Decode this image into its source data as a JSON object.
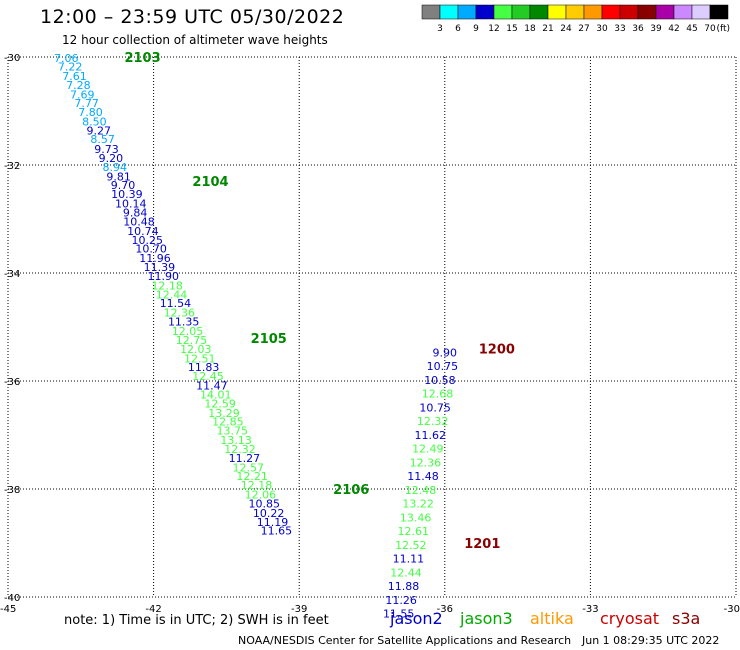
{
  "title": "12:00 – 23:59 UTC 05/30/2022",
  "subtitle": "12 hour collection of altimeter wave heights",
  "note": "note:  1) Time is in UTC;  2) SWH is in feet",
  "credit": "NOAA/NESDIS Center for Satellite Applications and Research",
  "timestamp": "Jun  1 08:29:35 UTC 2022",
  "satellites": [
    {
      "name": "jason2",
      "color": "#0000cc"
    },
    {
      "name": "jason3",
      "color": "#00aa00"
    },
    {
      "name": "altika",
      "color": "#ff9900"
    },
    {
      "name": "cryosat",
      "color": "#cc0000"
    },
    {
      "name": "s3a",
      "color": "#880000"
    }
  ],
  "colorbar": {
    "labels": [
      "3",
      "6",
      "9",
      "12",
      "15",
      "18",
      "21",
      "24",
      "27",
      "30",
      "33",
      "36",
      "39",
      "42",
      "45",
      "70"
    ],
    "unit": "(ft)",
    "colors": [
      "#808080",
      "#00ffff",
      "#00aaff",
      "#0000cc",
      "#44ff44",
      "#22cc22",
      "#008800",
      "#ffff00",
      "#ffcc00",
      "#ff9900",
      "#ff0000",
      "#cc0000",
      "#880000",
      "#aa00aa",
      "#cc88ff",
      "#ddccff",
      "#000000"
    ]
  },
  "chart_data": {
    "type": "scatter",
    "xlim": [
      -45,
      -30
    ],
    "ylim": [
      -40,
      -30
    ],
    "x_ticks": [
      -45,
      -42,
      -39,
      -36,
      -33,
      -30
    ],
    "y_ticks": [
      -30,
      -32,
      -34,
      -36,
      -38,
      -40
    ],
    "tick_labels_x": [
      "-45",
      "-42",
      "-39",
      "-36",
      "-33",
      "-30"
    ],
    "tick_labels_y": [
      "-30",
      "-32",
      "-34",
      "-36",
      "-38",
      "-40"
    ],
    "grid": true,
    "time_labels": [
      {
        "text": "2103",
        "lon": -42.6,
        "lat": -30.0,
        "color": "#008800"
      },
      {
        "text": "2104",
        "lon": -41.2,
        "lat": -32.3,
        "color": "#008800"
      },
      {
        "text": "2105",
        "lon": -40.0,
        "lat": -35.2,
        "color": "#008800"
      },
      {
        "text": "2106",
        "lon": -38.3,
        "lat": -38.0,
        "color": "#008800"
      },
      {
        "text": "1200",
        "lon": -35.3,
        "lat": -35.4,
        "color": "#880000"
      },
      {
        "text": "1201",
        "lon": -35.6,
        "lat": -39.0,
        "color": "#880000"
      }
    ],
    "points": [
      {
        "lon": -43.8,
        "lat": -30.02,
        "v": "7.06",
        "color": "#00aaff"
      },
      {
        "lon": -43.72,
        "lat": -30.18,
        "v": "7.22",
        "color": "#00aaff"
      },
      {
        "lon": -43.63,
        "lat": -30.35,
        "v": "7.61",
        "color": "#00aaff"
      },
      {
        "lon": -43.55,
        "lat": -30.52,
        "v": "7.28",
        "color": "#00aaff"
      },
      {
        "lon": -43.47,
        "lat": -30.69,
        "v": "7.69",
        "color": "#00aaff"
      },
      {
        "lon": -43.38,
        "lat": -30.85,
        "v": "7.77",
        "color": "#00aaff"
      },
      {
        "lon": -43.3,
        "lat": -31.02,
        "v": "7.80",
        "color": "#00aaff"
      },
      {
        "lon": -43.22,
        "lat": -31.19,
        "v": "8.50",
        "color": "#00aaff"
      },
      {
        "lon": -43.13,
        "lat": -31.36,
        "v": "9.27",
        "color": "#0000cc"
      },
      {
        "lon": -43.05,
        "lat": -31.52,
        "v": "8.57",
        "color": "#00aaff"
      },
      {
        "lon": -42.97,
        "lat": -31.7,
        "v": "9.73",
        "color": "#0000cc"
      },
      {
        "lon": -42.88,
        "lat": -31.87,
        "v": "9.20",
        "color": "#0000cc"
      },
      {
        "lon": -42.8,
        "lat": -32.04,
        "v": "8.94",
        "color": "#00aaff"
      },
      {
        "lon": -42.72,
        "lat": -32.21,
        "v": "9.81",
        "color": "#0000cc"
      },
      {
        "lon": -42.63,
        "lat": -32.37,
        "v": "9.70",
        "color": "#0000cc"
      },
      {
        "lon": -42.55,
        "lat": -32.54,
        "v": "10.39",
        "color": "#0000cc"
      },
      {
        "lon": -42.47,
        "lat": -32.71,
        "v": "10.14",
        "color": "#0000cc"
      },
      {
        "lon": -42.38,
        "lat": -32.88,
        "v": "9.84",
        "color": "#0000cc"
      },
      {
        "lon": -42.3,
        "lat": -33.05,
        "v": "10.48",
        "color": "#0000cc"
      },
      {
        "lon": -42.22,
        "lat": -33.22,
        "v": "10.74",
        "color": "#0000cc"
      },
      {
        "lon": -42.13,
        "lat": -33.39,
        "v": "10.25",
        "color": "#0000cc"
      },
      {
        "lon": -42.05,
        "lat": -33.55,
        "v": "10.70",
        "color": "#0000cc"
      },
      {
        "lon": -41.97,
        "lat": -33.72,
        "v": "11.96",
        "color": "#0000cc"
      },
      {
        "lon": -41.88,
        "lat": -33.89,
        "v": "11.39",
        "color": "#0000cc"
      },
      {
        "lon": -41.8,
        "lat": -34.06,
        "v": "11.90",
        "color": "#0000cc"
      },
      {
        "lon": -41.72,
        "lat": -34.23,
        "v": "12.18",
        "color": "#44ff44"
      },
      {
        "lon": -41.63,
        "lat": -34.4,
        "v": "12.44",
        "color": "#44ff44"
      },
      {
        "lon": -41.55,
        "lat": -34.56,
        "v": "11.54",
        "color": "#0000cc"
      },
      {
        "lon": -41.47,
        "lat": -34.73,
        "v": "12.36",
        "color": "#44ff44"
      },
      {
        "lon": -41.38,
        "lat": -34.9,
        "v": "11.35",
        "color": "#0000cc"
      },
      {
        "lon": -41.3,
        "lat": -35.07,
        "v": "12.05",
        "color": "#44ff44"
      },
      {
        "lon": -41.22,
        "lat": -35.24,
        "v": "12.75",
        "color": "#44ff44"
      },
      {
        "lon": -41.13,
        "lat": -35.41,
        "v": "12.03",
        "color": "#44ff44"
      },
      {
        "lon": -41.05,
        "lat": -35.58,
        "v": "12.51",
        "color": "#44ff44"
      },
      {
        "lon": -40.97,
        "lat": -35.74,
        "v": "11.83",
        "color": "#0000cc"
      },
      {
        "lon": -40.88,
        "lat": -35.91,
        "v": "12.45",
        "color": "#44ff44"
      },
      {
        "lon": -40.8,
        "lat": -36.08,
        "v": "11.47",
        "color": "#0000cc"
      },
      {
        "lon": -40.72,
        "lat": -36.25,
        "v": "14.01",
        "color": "#44ff44"
      },
      {
        "lon": -40.63,
        "lat": -36.42,
        "v": "12.59",
        "color": "#44ff44"
      },
      {
        "lon": -40.55,
        "lat": -36.59,
        "v": "13.29",
        "color": "#44ff44"
      },
      {
        "lon": -40.47,
        "lat": -36.75,
        "v": "12.85",
        "color": "#44ff44"
      },
      {
        "lon": -40.38,
        "lat": -36.92,
        "v": "13.75",
        "color": "#44ff44"
      },
      {
        "lon": -40.3,
        "lat": -37.09,
        "v": "13.13",
        "color": "#44ff44"
      },
      {
        "lon": -40.22,
        "lat": -37.26,
        "v": "12.32",
        "color": "#44ff44"
      },
      {
        "lon": -40.13,
        "lat": -37.43,
        "v": "11.27",
        "color": "#0000cc"
      },
      {
        "lon": -40.05,
        "lat": -37.6,
        "v": "12.57",
        "color": "#44ff44"
      },
      {
        "lon": -39.97,
        "lat": -37.76,
        "v": "12.21",
        "color": "#44ff44"
      },
      {
        "lon": -39.88,
        "lat": -37.93,
        "v": "12.18",
        "color": "#44ff44"
      },
      {
        "lon": -39.8,
        "lat": -38.1,
        "v": "12.06",
        "color": "#44ff44"
      },
      {
        "lon": -39.72,
        "lat": -38.27,
        "v": "10.85",
        "color": "#0000cc"
      },
      {
        "lon": -39.63,
        "lat": -38.44,
        "v": "10.22",
        "color": "#0000cc"
      },
      {
        "lon": -39.55,
        "lat": -38.61,
        "v": "11.19",
        "color": "#0000cc"
      },
      {
        "lon": -39.47,
        "lat": -38.77,
        "v": "11.65",
        "color": "#0000cc"
      },
      {
        "lon": -36.0,
        "lat": -35.47,
        "v": "9.90",
        "color": "#0000cc"
      },
      {
        "lon": -36.05,
        "lat": -35.72,
        "v": "10.75",
        "color": "#0000cc"
      },
      {
        "lon": -36.1,
        "lat": -35.98,
        "v": "10.58",
        "color": "#0000cc"
      },
      {
        "lon": -36.15,
        "lat": -36.23,
        "v": "12.68",
        "color": "#44ff44"
      },
      {
        "lon": -36.2,
        "lat": -36.49,
        "v": "10.75",
        "color": "#0000cc"
      },
      {
        "lon": -36.25,
        "lat": -36.74,
        "v": "12.32",
        "color": "#44ff44"
      },
      {
        "lon": -36.3,
        "lat": -37.0,
        "v": "11.62",
        "color": "#0000cc"
      },
      {
        "lon": -36.35,
        "lat": -37.25,
        "v": "12.49",
        "color": "#44ff44"
      },
      {
        "lon": -36.4,
        "lat": -37.51,
        "v": "12.36",
        "color": "#44ff44"
      },
      {
        "lon": -36.45,
        "lat": -37.76,
        "v": "11.48",
        "color": "#0000cc"
      },
      {
        "lon": -36.5,
        "lat": -38.02,
        "v": "12.48",
        "color": "#44ff44"
      },
      {
        "lon": -36.55,
        "lat": -38.27,
        "v": "13.22",
        "color": "#44ff44"
      },
      {
        "lon": -36.6,
        "lat": -38.53,
        "v": "13.46",
        "color": "#44ff44"
      },
      {
        "lon": -36.65,
        "lat": -38.78,
        "v": "12.61",
        "color": "#44ff44"
      },
      {
        "lon": -36.7,
        "lat": -39.04,
        "v": "12.52",
        "color": "#44ff44"
      },
      {
        "lon": -36.75,
        "lat": -39.29,
        "v": "11.11",
        "color": "#0000cc"
      },
      {
        "lon": -36.8,
        "lat": -39.55,
        "v": "12.44",
        "color": "#44ff44"
      },
      {
        "lon": -36.85,
        "lat": -39.8,
        "v": "11.88",
        "color": "#0000cc"
      },
      {
        "lon": -36.9,
        "lat": -40.06,
        "v": "11.26",
        "color": "#0000cc"
      },
      {
        "lon": -36.95,
        "lat": -40.31,
        "v": "11.55",
        "color": "#0000cc"
      }
    ]
  }
}
